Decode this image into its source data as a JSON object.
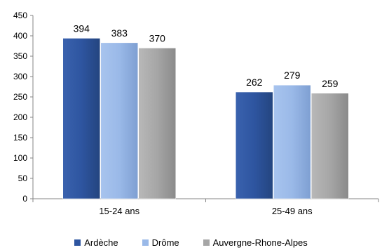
{
  "chart_data": {
    "type": "bar",
    "title": "",
    "xlabel": "",
    "ylabel": "",
    "categories": [
      "15-24 ans",
      "25-49 ans"
    ],
    "series": [
      {
        "name": "Ardèche",
        "values": [
          394,
          262
        ],
        "color": "#2e55a0"
      },
      {
        "name": "Drôme",
        "values": [
          383,
          279
        ],
        "color": "#9ab9e8"
      },
      {
        "name": "Auvergne-Rhone-Alpes",
        "values": [
          370,
          259
        ],
        "color": "#a6a6a6"
      }
    ],
    "ylim": [
      0,
      450
    ],
    "yticks": [
      0,
      50,
      100,
      150,
      200,
      250,
      300,
      350,
      400,
      450
    ],
    "grid": false,
    "legend": "bottom"
  }
}
